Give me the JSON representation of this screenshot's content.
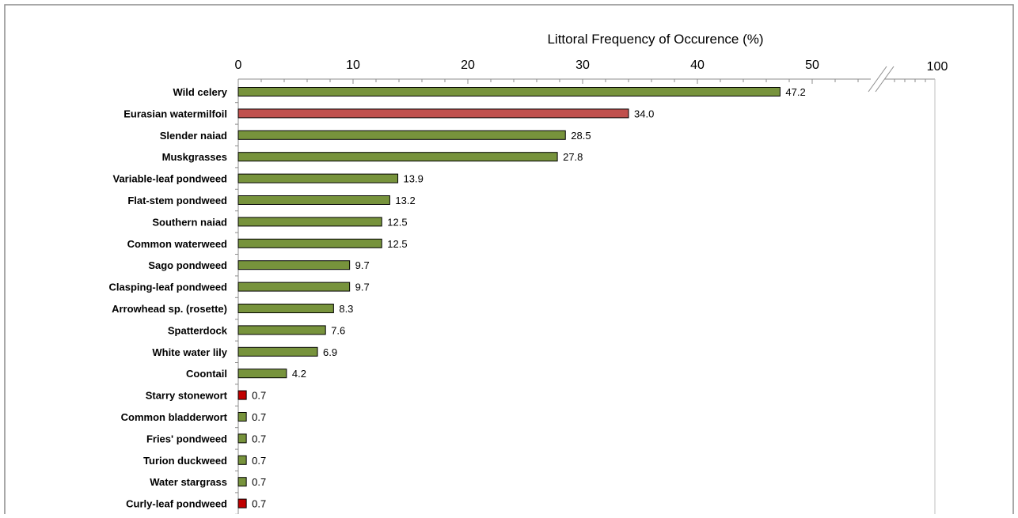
{
  "chart_data": {
    "type": "bar",
    "orientation": "horizontal",
    "title": "Littoral Frequency of Occurence (%)",
    "xlabel": "Littoral Frequency of Occurence (%)",
    "ylabel": "",
    "xlim": [
      0,
      100
    ],
    "axis_break": [
      55,
      95
    ],
    "x_ticks": [
      "0",
      "10",
      "20",
      "30",
      "40",
      "50",
      "100"
    ],
    "grid": false,
    "legend": "none",
    "categories": [
      "Wild celery",
      "Eurasian watermilfoil",
      "Slender naiad",
      "Muskgrasses",
      "Variable-leaf pondweed",
      "Flat-stem pondweed",
      "Southern naiad",
      "Common waterweed",
      "Sago pondweed",
      "Clasping-leaf pondweed",
      "Arrowhead sp. (rosette)",
      "Spatterdock",
      "White water lily",
      "Coontail",
      "Starry stonewort",
      "Common bladderwort",
      "Fries' pondweed",
      "Turion duckweed",
      "Water stargrass",
      "Curly-leaf pondweed"
    ],
    "values": [
      47.2,
      34.0,
      28.5,
      27.8,
      13.9,
      13.2,
      12.5,
      12.5,
      9.7,
      9.7,
      8.3,
      7.6,
      6.9,
      4.2,
      0.7,
      0.7,
      0.7,
      0.7,
      0.7,
      0.7
    ],
    "value_labels": [
      "47.2",
      "34.0",
      "28.5",
      "27.8",
      "13.9",
      "13.2",
      "12.5",
      "12.5",
      "9.7",
      "9.7",
      "8.3",
      "7.6",
      "6.9",
      "4.2",
      "0.7",
      "0.7",
      "0.7",
      "0.7",
      "0.7",
      "0.7"
    ],
    "bar_colors": [
      "#77933c",
      "#c0504d",
      "#77933c",
      "#77933c",
      "#77933c",
      "#77933c",
      "#77933c",
      "#77933c",
      "#77933c",
      "#77933c",
      "#77933c",
      "#77933c",
      "#77933c",
      "#77933c",
      "#c00000",
      "#77933c",
      "#77933c",
      "#77933c",
      "#77933c",
      "#c00000"
    ]
  }
}
